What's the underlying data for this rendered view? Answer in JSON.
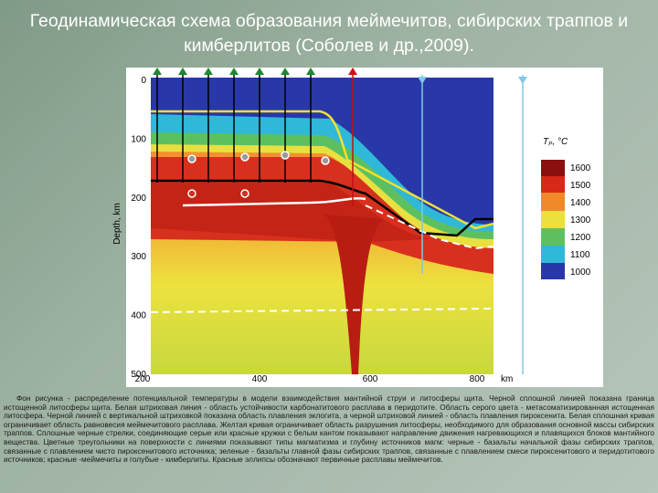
{
  "title": "Геодинамическая схема образования меймечитов, сибирских траппов и кимберлитов (Соболев и др.,2009).",
  "figure": {
    "y_axis_label": "Depth, km",
    "y_ticks": [
      0,
      100,
      200,
      300,
      400,
      500
    ],
    "x_ticks": [
      200,
      400,
      600,
      800
    ],
    "x_unit": "km",
    "colorbar_label": "Tₚ, °C",
    "colorbar_ticks": [
      1600,
      1500,
      1400,
      1300,
      1200,
      1100,
      1000
    ]
  },
  "caption": "Фон рисунка - распределение потенциальной температуры в модели взаимодействия мантийной струи и литосферы щита. Черной сплошной линией показана граница истощенной литосферы щита. Белая штриховая линия - область устойчивости карбонатитового расплава в перидотите. Область серого цвета - метасоматизированная истощенная литосфера. Черной линией с вертикальной штриховкой показана область плавления эклогита, а черной штриховой линией - область плавления пироксенита. Белая сплошная кривая ограничивает область равновесия меймечитового расплава. Желтая кривая ограничивает область разрушения литосферы, необходимого для образования основной массы сибирских траппов. Сплошные черные стрелки, соединяющие серые или красные кружки с белым кантом показывают направление движения нагревающихся и плавящихся блоков мантийного вещества. Цветные треугольники на поверхности с линиями показывают типы магматизма и глубину источников магм: черные - базальты начальной фазы сибирских траппов, связанные с плавлением чисто пироксенитового источника; зеленые - базальты главной фазы сибирских траппов, связанные с плавлением смеси пироксенитового и перидотитового источников; красные -меймечиты и голубые - кимберлиты. Красные эллипсы обозначают первичные расплавы меймечитов."
}
